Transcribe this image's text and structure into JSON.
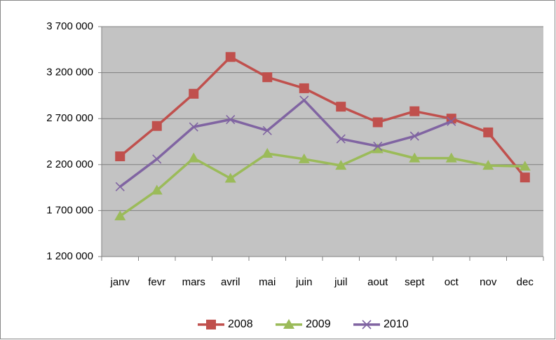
{
  "chart_data": {
    "type": "line",
    "categories": [
      "janv",
      "fevr",
      "mars",
      "avril",
      "mai",
      "juin",
      "juil",
      "aout",
      "sept",
      "oct",
      "nov",
      "dec"
    ],
    "series": [
      {
        "name": "2008",
        "color": "#c0504d",
        "marker": "square",
        "values": [
          2290000,
          2620000,
          2970000,
          3370000,
          3150000,
          3030000,
          2830000,
          2660000,
          2780000,
          2700000,
          2550000,
          2060000
        ]
      },
      {
        "name": "2009",
        "color": "#9bbb59",
        "marker": "triangle",
        "values": [
          1640000,
          1920000,
          2270000,
          2050000,
          2320000,
          2260000,
          2190000,
          2370000,
          2270000,
          2270000,
          2190000,
          2180000
        ]
      },
      {
        "name": "2010",
        "color": "#8064a2",
        "marker": "x",
        "values": [
          1960000,
          2260000,
          2610000,
          2690000,
          2570000,
          2900000,
          2480000,
          2400000,
          2510000,
          2670000,
          null,
          null
        ]
      }
    ],
    "ylim": [
      1200000,
      3700000
    ],
    "yticks": [
      {
        "value": 1200000,
        "label": "1 200 000"
      },
      {
        "value": 1700000,
        "label": "1 700 000"
      },
      {
        "value": 2200000,
        "label": "2 200 000"
      },
      {
        "value": 2700000,
        "label": "2 700 000"
      },
      {
        "value": 3200000,
        "label": "3 200 000"
      },
      {
        "value": 3700000,
        "label": "3 700 000"
      }
    ],
    "grid": true,
    "legend": "bottom"
  }
}
